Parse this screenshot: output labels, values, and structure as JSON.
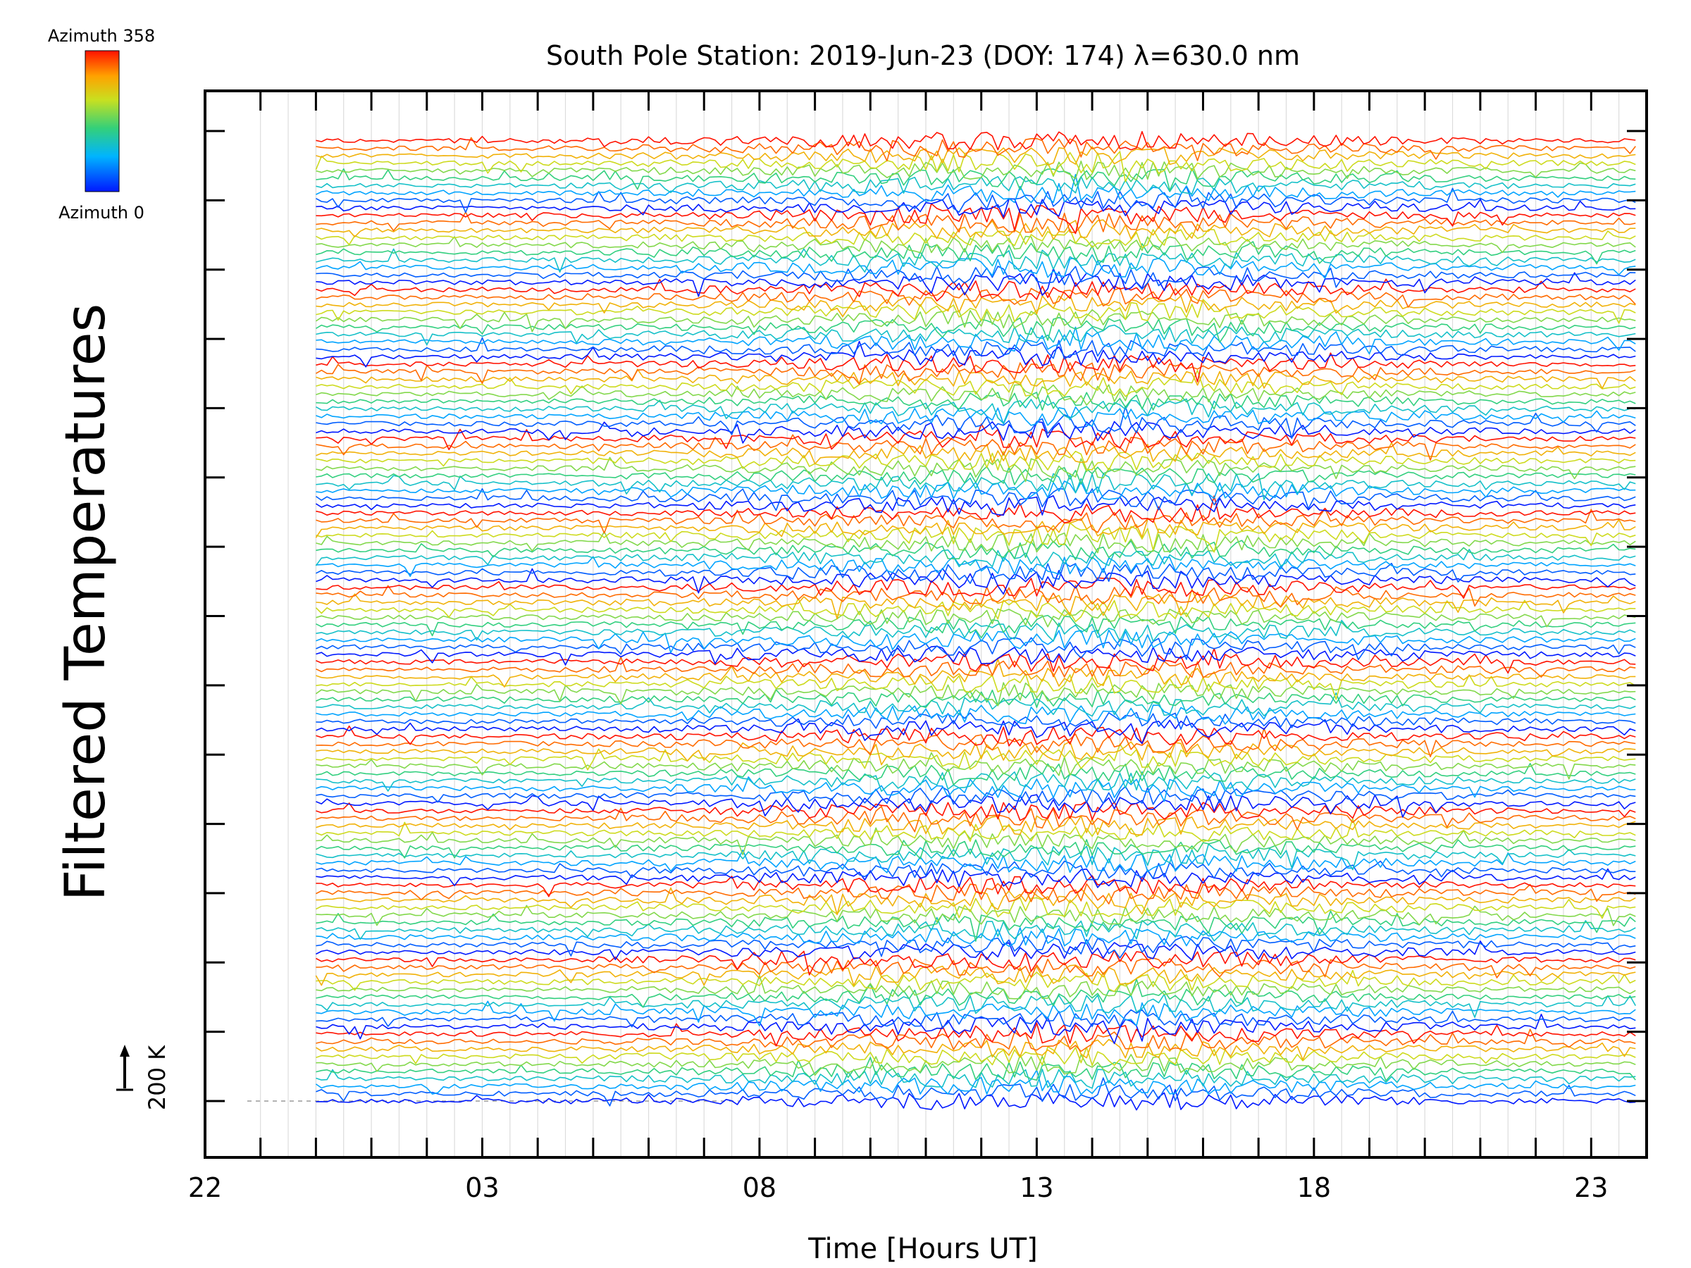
{
  "chart_data": {
    "type": "line",
    "title": "South Pole Station: 2019-Jun-23 (DOY: 174) λ=630.0 nm",
    "ylabel": "Filtered Temperatures",
    "xlabel": "Time [Hours UT]",
    "x_tick_labels": [
      "22",
      "03",
      "08",
      "13",
      "18",
      "23"
    ],
    "x_range_hours": [
      22,
      48
    ],
    "data_start_hour": 24,
    "data_end_hour": 47.8,
    "scale_bar_label": "200 K",
    "legend": {
      "top_label": "Azimuth 358",
      "bottom_label": "Azimuth 0",
      "azimuth_range": [
        0,
        358
      ],
      "colormap": "rainbow (blue to red)",
      "placement": "top-left"
    },
    "series": {
      "groups": 13,
      "traces_per_group": 10,
      "description_of_order": "each group runs from azimuth 0 (blue, bottom) to azimuth 358 (red, top)"
    },
    "grid": true,
    "colors": {
      "grid": "#dcdcdc",
      "axis": "#000000",
      "low_azimuth": "#0000ff",
      "high_azimuth": "#ff0000"
    }
  }
}
